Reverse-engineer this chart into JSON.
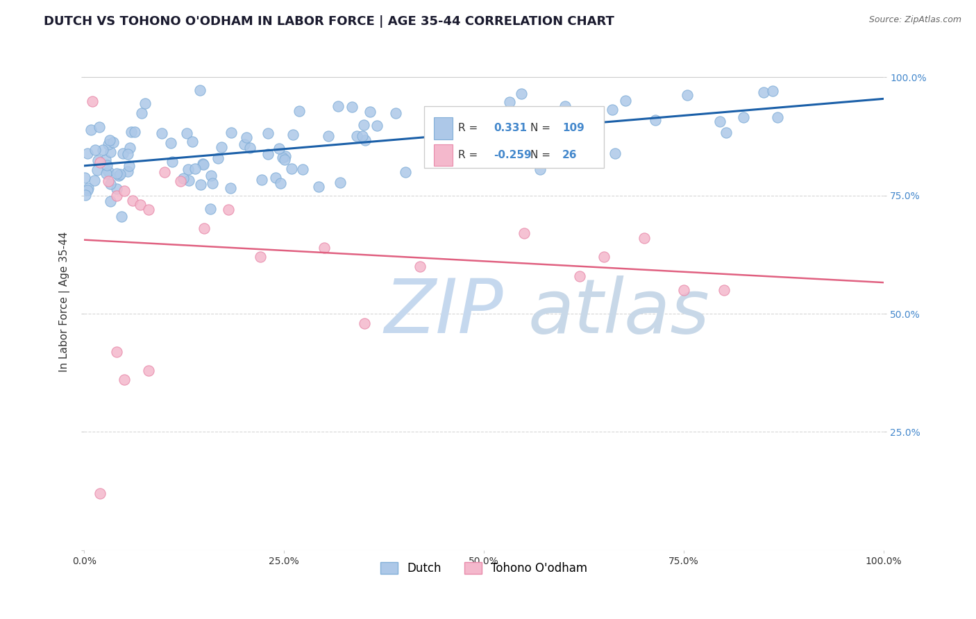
{
  "title": "DUTCH VS TOHONO O'ODHAM IN LABOR FORCE | AGE 35-44 CORRELATION CHART",
  "source_text": "Source: ZipAtlas.com",
  "ylabel": "In Labor Force | Age 35-44",
  "dutch_R": 0.331,
  "dutch_N": 109,
  "tohono_R": -0.259,
  "tohono_N": 26,
  "dutch_color": "#adc8e8",
  "dutch_edge_color": "#82afd8",
  "tohono_color": "#f4b8cc",
  "tohono_edge_color": "#e88aaa",
  "dutch_line_color": "#1a5fa8",
  "tohono_line_color": "#e06080",
  "watermark_zip_color": "#c5d8ee",
  "watermark_atlas_color": "#c8d8e8",
  "grid_color": "#cccccc",
  "background_color": "#ffffff",
  "right_tick_color": "#4488cc",
  "marker_size": 120
}
